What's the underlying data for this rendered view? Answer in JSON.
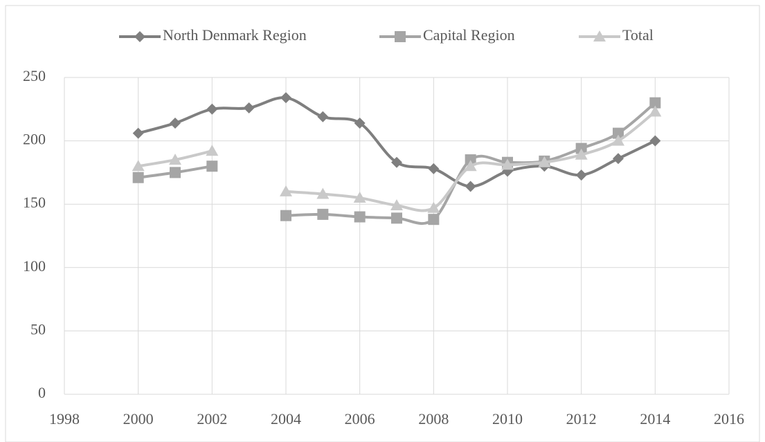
{
  "chart_data": {
    "type": "line",
    "x": [
      2000,
      2001,
      2002,
      2003,
      2004,
      2005,
      2006,
      2007,
      2008,
      2009,
      2010,
      2011,
      2012,
      2013,
      2014
    ],
    "series": [
      {
        "name": "North Denmark Region",
        "color": "#7f7f7f",
        "marker": "diamond",
        "values": [
          206,
          214,
          225,
          226,
          234,
          219,
          214,
          183,
          178,
          164,
          176,
          180,
          173,
          186,
          200
        ]
      },
      {
        "name": "Capital Region",
        "color": "#a5a5a5",
        "marker": "square",
        "values": [
          171,
          175,
          180,
          null,
          141,
          142,
          140,
          139,
          138,
          185,
          183,
          184,
          194,
          206,
          230
        ]
      },
      {
        "name": "Total",
        "color": "#c9c9c9",
        "marker": "triangle",
        "values": [
          180,
          185,
          192,
          null,
          160,
          158,
          155,
          149,
          147,
          180,
          181,
          183,
          189,
          200,
          223
        ]
      }
    ],
    "xlim": [
      1998,
      2016
    ],
    "xticks": [
      1998,
      2000,
      2002,
      2004,
      2006,
      2008,
      2010,
      2012,
      2014,
      2016
    ],
    "ylim": [
      0,
      250
    ],
    "yticks": [
      0,
      50,
      100,
      150,
      200,
      250
    ],
    "grid": true,
    "legend": "top"
  }
}
